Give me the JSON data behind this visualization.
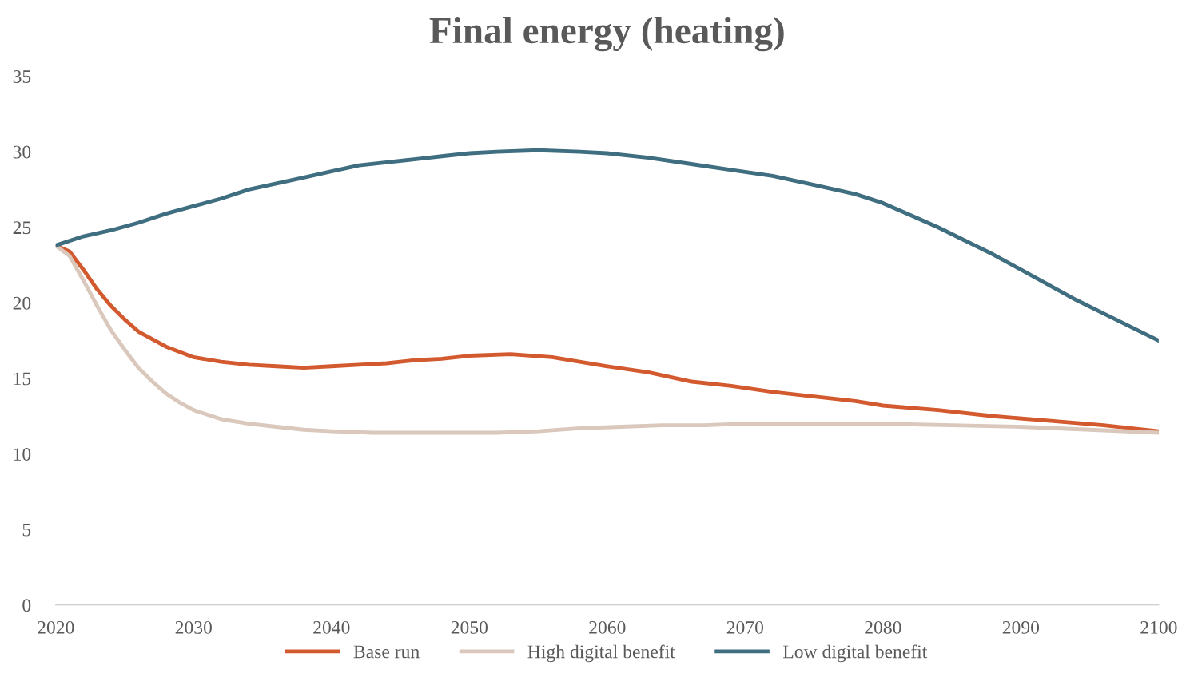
{
  "chart_data": {
    "type": "line",
    "title": "Final energy (heating)",
    "xlim": [
      2020,
      2100
    ],
    "xticks": [
      2020,
      2030,
      2040,
      2050,
      2060,
      2070,
      2080,
      2090,
      2100
    ],
    "ylim": [
      0,
      35
    ],
    "yticks": [
      0,
      5,
      10,
      15,
      20,
      25,
      30,
      35
    ],
    "grid": false,
    "legend": "bottom",
    "marker": "none",
    "line_style": "solid",
    "series": [
      {
        "name": "Base run",
        "color": "#d35a2f",
        "x": [
          2020,
          2021,
          2022,
          2023,
          2024,
          2025,
          2026,
          2028,
          2030,
          2032,
          2034,
          2036,
          2038,
          2040,
          2042,
          2044,
          2046,
          2048,
          2050,
          2053,
          2056,
          2058,
          2060,
          2063,
          2066,
          2069,
          2072,
          2075,
          2078,
          2080,
          2084,
          2088,
          2092,
          2096,
          2100
        ],
        "values": [
          23.8,
          23.4,
          22.2,
          20.9,
          19.8,
          18.9,
          18.1,
          17.1,
          16.4,
          16.1,
          15.9,
          15.8,
          15.7,
          15.8,
          15.9,
          16.0,
          16.2,
          16.3,
          16.5,
          16.6,
          16.4,
          16.1,
          15.8,
          15.4,
          14.8,
          14.5,
          14.1,
          13.8,
          13.5,
          13.2,
          12.9,
          12.5,
          12.2,
          11.9,
          11.5
        ]
      },
      {
        "name": "High digital benefit",
        "color": "#d9c8bb",
        "x": [
          2020,
          2021,
          2022,
          2023,
          2024,
          2025,
          2026,
          2027,
          2028,
          2029,
          2030,
          2032,
          2034,
          2036,
          2038,
          2040,
          2043,
          2046,
          2049,
          2052,
          2055,
          2058,
          2061,
          2064,
          2067,
          2070,
          2075,
          2080,
          2085,
          2090,
          2095,
          2100
        ],
        "values": [
          23.8,
          23.1,
          21.5,
          19.8,
          18.2,
          16.9,
          15.7,
          14.8,
          14.0,
          13.4,
          12.9,
          12.3,
          12.0,
          11.8,
          11.6,
          11.5,
          11.4,
          11.4,
          11.4,
          11.4,
          11.5,
          11.7,
          11.8,
          11.9,
          11.9,
          12.0,
          12.0,
          12.0,
          11.9,
          11.8,
          11.6,
          11.4
        ]
      },
      {
        "name": "Low digital benefit",
        "color": "#3f6e80",
        "x": [
          2020,
          2022,
          2024,
          2026,
          2028,
          2030,
          2032,
          2034,
          2036,
          2038,
          2040,
          2042,
          2044,
          2046,
          2048,
          2050,
          2052,
          2055,
          2058,
          2060,
          2063,
          2066,
          2069,
          2072,
          2075,
          2078,
          2080,
          2082,
          2084,
          2086,
          2088,
          2090,
          2092,
          2094,
          2096,
          2098,
          2100
        ],
        "values": [
          23.8,
          24.4,
          24.8,
          25.3,
          25.9,
          26.4,
          26.9,
          27.5,
          27.9,
          28.3,
          28.7,
          29.1,
          29.3,
          29.5,
          29.7,
          29.9,
          30.0,
          30.1,
          30.0,
          29.9,
          29.6,
          29.2,
          28.8,
          28.4,
          27.8,
          27.2,
          26.6,
          25.8,
          25.0,
          24.1,
          23.2,
          22.2,
          21.2,
          20.2,
          19.3,
          18.4,
          17.5
        ]
      }
    ]
  }
}
